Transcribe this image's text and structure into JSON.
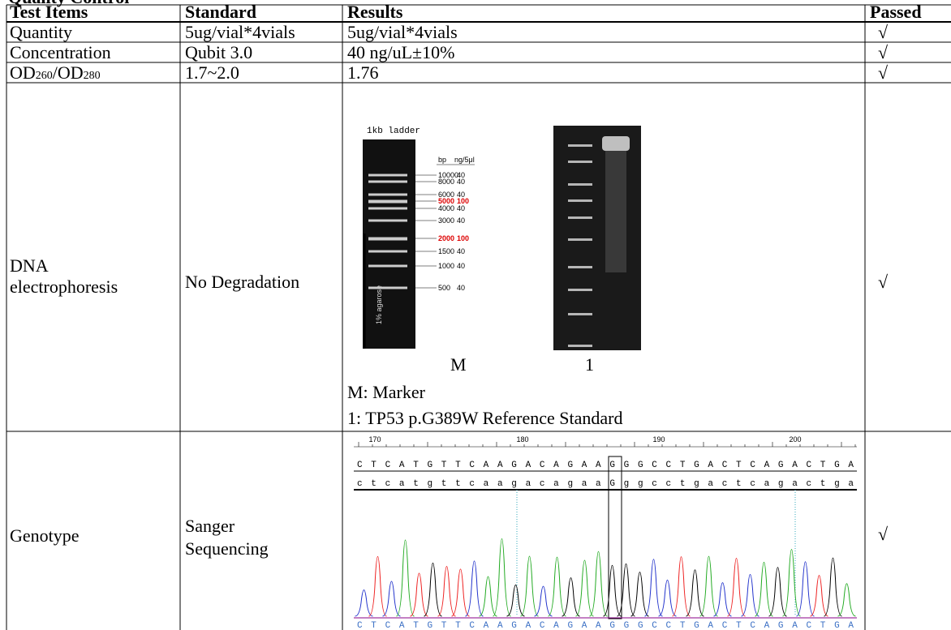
{
  "heading": "Quality Control",
  "table": {
    "header": [
      "Test Items",
      "Standard",
      "Results",
      "Passed"
    ],
    "rows": [
      [
        "Quantity",
        "5ug/vial*4vials",
        "5ug/vial*4vials",
        "√"
      ],
      [
        "Concentration",
        "Qubit 3.0",
        "40 ng/uL±10%",
        "√"
      ],
      [
        [
          "OD",
          "260",
          "/OD",
          "280"
        ],
        "1.7~2.0",
        "1.76",
        "√"
      ],
      [
        [
          "DNA",
          "electrophoresis"
        ],
        "No Degradation",
        {
          "ladder_title": "1kb ladder",
          "col_headers": [
            "bp",
            "ng/5μl"
          ],
          "ladder": [
            [
              "10000",
              "40"
            ],
            [
              "8000",
              "40"
            ],
            [
              "6000",
              "40"
            ],
            [
              "5000",
              "100"
            ],
            [
              "4000",
              "40"
            ],
            [
              "3000",
              "40"
            ],
            [
              "2000",
              "100"
            ],
            [
              "1500",
              "40"
            ],
            [
              "1000",
              "40"
            ],
            [
              "500",
              "40"
            ]
          ],
          "agarose": "1% agarose",
          "lane_labels": [
            "M",
            "1"
          ],
          "legend": [
            "M: Marker",
            "1: TP53 p.G389W Reference Standard"
          ]
        },
        "√"
      ],
      [
        "Genotype",
        [
          "Sanger",
          "Sequencing"
        ],
        {
          "positions": [
            170,
            180,
            190,
            200
          ],
          "reference": "CTCATGTTCAAGACAGAAGGGCCTGACTCAGACTGA",
          "sample": "ctcatgttcaagacagaaGggcctgactcagactga",
          "called": "CTCATGTTCAAGACAGAAGGGCCTGACTCAGACTGA"
        },
        "√"
      ]
    ]
  }
}
